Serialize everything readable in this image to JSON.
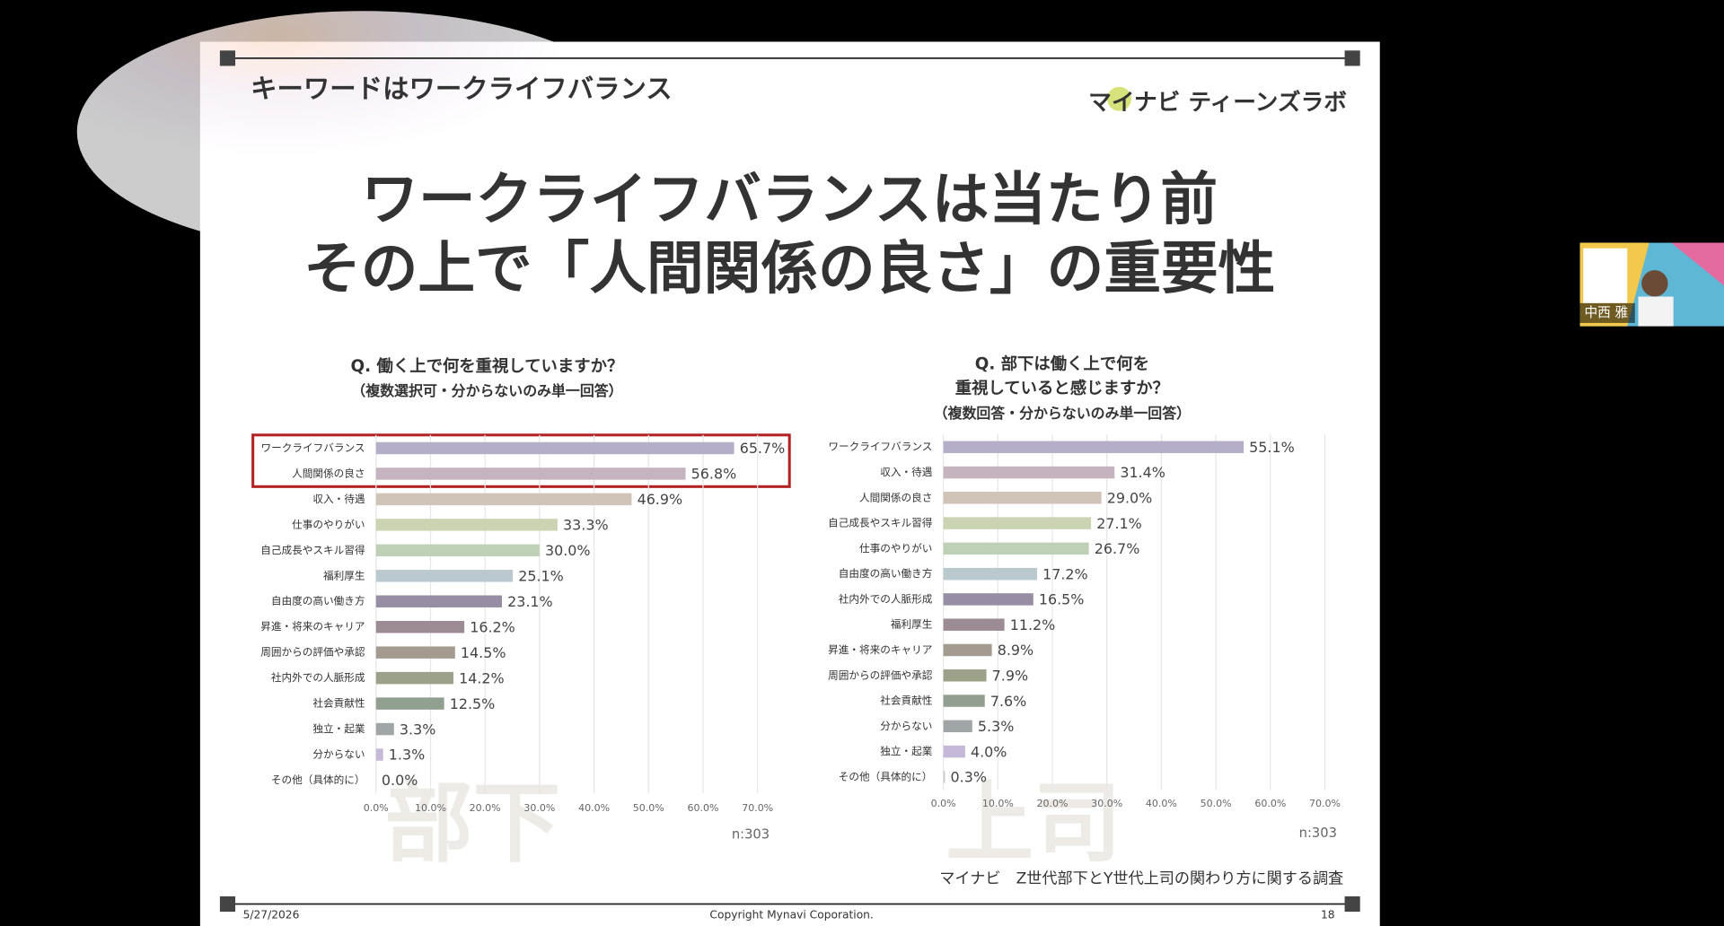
{
  "slide": {
    "header": "キーワードはワークライフバランス",
    "logo": "マイナビ ティーンズラボ",
    "headline": [
      "ワークライフバランスは当たり前",
      "その上で「人間関係の良さ」の重要性"
    ],
    "source": "マイナビ　Z世代部下とY世代上司の関わり方に関する調査",
    "footer": {
      "date": "5/27/2026",
      "copyright": "Copyright Mynavi Coporation.",
      "page": "18"
    }
  },
  "webcam": {
    "name": "中西 雅"
  },
  "chart_data": [
    {
      "type": "hbar",
      "title": [
        "Q. 働く上で何を重視していますか？"
      ],
      "subtitle": "（複数選択可・分からないのみ単一回答）",
      "watermark": "部下",
      "categories": [
        "ワークライフバランス",
        "人間関係の良さ",
        "収入・待遇",
        "仕事のやりがい",
        "自己成長やスキル習得",
        "福利厚生",
        "自由度の高い働き方",
        "昇進・将来のキャリア",
        "周囲からの評価や承認",
        "社内外での人脈形成",
        "社会貢献性",
        "独立・起業",
        "分からない",
        "その他（具体的に）"
      ],
      "values": [
        65.7,
        56.8,
        46.9,
        33.3,
        30.0,
        25.1,
        23.1,
        16.2,
        14.5,
        14.2,
        12.5,
        3.3,
        1.3,
        0.0
      ],
      "value_labels": [
        "65.7%",
        "56.8%",
        "46.9%",
        "33.3%",
        "30.0%",
        "25.1%",
        "23.1%",
        "16.2%",
        "14.5%",
        "14.2%",
        "12.5%",
        "3.3%",
        "1.3%",
        "0.0%"
      ],
      "colors": [
        "#b6adc9",
        "#c6b3c0",
        "#d0c3b8",
        "#cbd4b2",
        "#bed1b7",
        "#b9c9cd",
        "#978ea3",
        "#9c8a95",
        "#a39b90",
        "#9ca28a",
        "#909f8f",
        "#a0a6a8",
        "#c6b8d8",
        "#cccccc"
      ],
      "xlim": [
        0,
        70
      ],
      "xticks": [
        {
          "value": 0,
          "label": "0.0%"
        },
        {
          "value": 10,
          "label": "10.0%"
        },
        {
          "value": 20,
          "label": "20.0%"
        },
        {
          "value": 30,
          "label": "30.0%"
        },
        {
          "value": 40,
          "label": "40.0%"
        },
        {
          "value": 50,
          "label": "50.0%"
        },
        {
          "value": 60,
          "label": "60.0%"
        },
        {
          "value": 70,
          "label": "70.0%"
        }
      ],
      "grid": true,
      "note": "n:303"
    },
    {
      "type": "hbar",
      "title": [
        "Q. 部下は働く上で何を",
        "重視していると感じますか？"
      ],
      "subtitle": "（複数回答・分からないのみ単一回答）",
      "watermark": "上司",
      "categories": [
        "ワークライフバランス",
        "収入・待遇",
        "人間関係の良さ",
        "自己成長やスキル習得",
        "仕事のやりがい",
        "自由度の高い働き方",
        "社内外での人脈形成",
        "福利厚生",
        "昇進・将来のキャリア",
        "周囲からの評価や承認",
        "社会貢献性",
        "分からない",
        "独立・起業",
        "その他（具体的に）"
      ],
      "values": [
        55.1,
        31.4,
        29.0,
        27.1,
        26.7,
        17.2,
        16.5,
        11.2,
        8.9,
        7.9,
        7.6,
        5.3,
        4.0,
        0.3
      ],
      "value_labels": [
        "55.1%",
        "31.4%",
        "29.0%",
        "27.1%",
        "26.7%",
        "17.2%",
        "16.5%",
        "11.2%",
        "8.9%",
        "7.9%",
        "7.6%",
        "5.3%",
        "4.0%",
        "0.3%"
      ],
      "colors": [
        "#b6adc9",
        "#c6b3c0",
        "#d0c3b8",
        "#cbd4b2",
        "#bed1b7",
        "#b9c9cd",
        "#978ea3",
        "#9c8a95",
        "#a39b90",
        "#9ca28a",
        "#909f8f",
        "#a0a6a8",
        "#c6b8d8",
        "#cccccc"
      ],
      "xlim": [
        0,
        70
      ],
      "xticks": [
        {
          "value": 0,
          "label": "0.0%"
        },
        {
          "value": 10,
          "label": "10.0%"
        },
        {
          "value": 20,
          "label": "20.0%"
        },
        {
          "value": 30,
          "label": "30.0%"
        },
        {
          "value": 40,
          "label": "40.0%"
        },
        {
          "value": 50,
          "label": "50.0%"
        },
        {
          "value": 60,
          "label": "60.0%"
        },
        {
          "value": 70,
          "label": "70.0%"
        }
      ],
      "grid": true,
      "note": "n:303"
    }
  ]
}
